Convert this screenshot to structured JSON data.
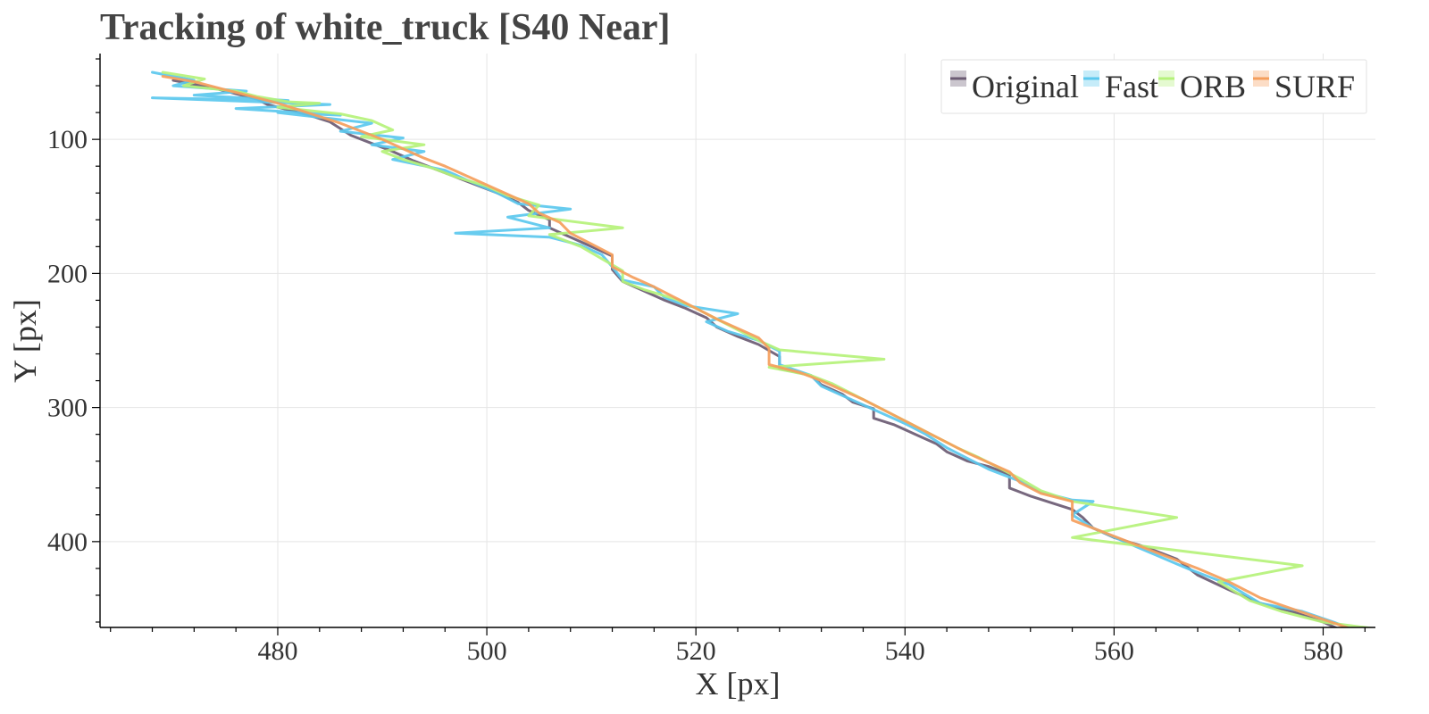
{
  "chart_data": {
    "type": "line",
    "title": "Tracking of white_truck [S40 Near]",
    "xlabel": "X [px]",
    "ylabel": "Y [px]",
    "xlim": [
      463,
      585
    ],
    "ylim": [
      464,
      36
    ],
    "y_inverted": true,
    "grid": true,
    "legend_position": "top-right",
    "x_ticks": [
      480,
      500,
      520,
      540,
      560,
      580
    ],
    "y_ticks": [
      100,
      200,
      300,
      400
    ],
    "series": [
      {
        "name": "Original",
        "color": "#6b5b73",
        "points": [
          [
            470,
            56
          ],
          [
            472,
            59
          ],
          [
            474,
            62
          ],
          [
            476,
            66
          ],
          [
            478,
            70
          ],
          [
            479,
            74
          ],
          [
            481,
            78
          ],
          [
            483,
            82
          ],
          [
            485,
            87
          ],
          [
            486,
            92
          ],
          [
            487,
            97
          ],
          [
            489,
            103
          ],
          [
            491,
            109
          ],
          [
            493,
            116
          ],
          [
            495,
            122
          ],
          [
            497,
            128
          ],
          [
            499,
            134
          ],
          [
            501,
            140
          ],
          [
            503,
            147
          ],
          [
            504,
            153
          ],
          [
            506,
            160
          ],
          [
            506,
            166
          ],
          [
            508,
            173
          ],
          [
            510,
            180
          ],
          [
            512,
            187
          ],
          [
            512,
            197
          ],
          [
            513,
            206
          ],
          [
            515,
            213
          ],
          [
            517,
            220
          ],
          [
            519,
            226
          ],
          [
            521,
            233
          ],
          [
            522,
            240
          ],
          [
            524,
            247
          ],
          [
            526,
            253
          ],
          [
            528,
            262
          ],
          [
            528,
            271
          ],
          [
            531,
            276
          ],
          [
            532,
            283
          ],
          [
            534,
            290
          ],
          [
            535,
            296
          ],
          [
            537,
            301
          ],
          [
            537,
            308
          ],
          [
            539,
            313
          ],
          [
            541,
            320
          ],
          [
            543,
            327
          ],
          [
            544,
            333
          ],
          [
            546,
            340
          ],
          [
            548,
            344
          ],
          [
            550,
            350
          ],
          [
            550,
            360
          ],
          [
            552,
            366
          ],
          [
            554,
            371
          ],
          [
            556,
            376
          ],
          [
            557,
            382
          ],
          [
            558,
            390
          ],
          [
            560,
            397
          ],
          [
            563,
            404
          ],
          [
            566,
            413
          ],
          [
            568,
            425
          ],
          [
            571,
            436
          ],
          [
            574,
            446
          ],
          [
            577,
            452
          ],
          [
            580,
            460
          ],
          [
            582,
            467
          ]
        ]
      },
      {
        "name": "Fast",
        "color": "#5bc8ee",
        "points": [
          [
            468,
            50
          ],
          [
            472,
            56
          ],
          [
            470,
            60
          ],
          [
            477,
            64
          ],
          [
            472,
            67
          ],
          [
            481,
            71
          ],
          [
            468,
            69
          ],
          [
            485,
            74
          ],
          [
            476,
            77
          ],
          [
            486,
            82
          ],
          [
            480,
            80
          ],
          [
            489,
            88
          ],
          [
            486,
            94
          ],
          [
            492,
            99
          ],
          [
            489,
            104
          ],
          [
            494,
            109
          ],
          [
            491,
            115
          ],
          [
            496,
            123
          ],
          [
            498,
            130
          ],
          [
            501,
            140
          ],
          [
            503,
            148
          ],
          [
            508,
            152
          ],
          [
            502,
            158
          ],
          [
            506,
            166
          ],
          [
            497,
            170
          ],
          [
            506,
            173
          ],
          [
            509,
            179
          ],
          [
            511,
            186
          ],
          [
            512,
            195
          ],
          [
            513,
            205
          ],
          [
            516,
            210
          ],
          [
            517,
            218
          ],
          [
            519,
            224
          ],
          [
            524,
            230
          ],
          [
            521,
            236
          ],
          [
            523,
            243
          ],
          [
            526,
            250
          ],
          [
            528,
            258
          ],
          [
            528,
            268
          ],
          [
            531,
            276
          ],
          [
            532,
            284
          ],
          [
            534,
            291
          ],
          [
            536,
            298
          ],
          [
            538,
            305
          ],
          [
            540,
            312
          ],
          [
            542,
            320
          ],
          [
            544,
            330
          ],
          [
            546,
            338
          ],
          [
            548,
            346
          ],
          [
            551,
            355
          ],
          [
            553,
            363
          ],
          [
            556,
            369
          ],
          [
            558,
            370
          ],
          [
            556,
            380
          ],
          [
            558,
            390
          ],
          [
            561,
            400
          ],
          [
            564,
            410
          ],
          [
            567,
            420
          ],
          [
            571,
            432
          ],
          [
            574,
            446
          ],
          [
            578,
            452
          ],
          [
            581,
            460
          ],
          [
            583,
            466
          ]
        ]
      },
      {
        "name": "ORB",
        "color": "#b5f27a",
        "points": [
          [
            469,
            50
          ],
          [
            473,
            55
          ],
          [
            471,
            60
          ],
          [
            476,
            64
          ],
          [
            478,
            68
          ],
          [
            481,
            72
          ],
          [
            484,
            73
          ],
          [
            480,
            76
          ],
          [
            486,
            81
          ],
          [
            489,
            86
          ],
          [
            491,
            93
          ],
          [
            488,
            98
          ],
          [
            494,
            104
          ],
          [
            490,
            109
          ],
          [
            492,
            115
          ],
          [
            495,
            122
          ],
          [
            497,
            128
          ],
          [
            500,
            135
          ],
          [
            502,
            142
          ],
          [
            505,
            149
          ],
          [
            504,
            157
          ],
          [
            513,
            166
          ],
          [
            506,
            171
          ],
          [
            509,
            180
          ],
          [
            511,
            189
          ],
          [
            513,
            198
          ],
          [
            513,
            206
          ],
          [
            515,
            212
          ],
          [
            518,
            219
          ],
          [
            520,
            226
          ],
          [
            522,
            234
          ],
          [
            524,
            242
          ],
          [
            526,
            250
          ],
          [
            528,
            257
          ],
          [
            538,
            264
          ],
          [
            527,
            270
          ],
          [
            531,
            276
          ],
          [
            533,
            282
          ],
          [
            535,
            290
          ],
          [
            537,
            298
          ],
          [
            539,
            306
          ],
          [
            541,
            314
          ],
          [
            543,
            322
          ],
          [
            545,
            330
          ],
          [
            547,
            337
          ],
          [
            549,
            345
          ],
          [
            551,
            353
          ],
          [
            553,
            362
          ],
          [
            556,
            370
          ],
          [
            566,
            382
          ],
          [
            556,
            397
          ],
          [
            578,
            418
          ],
          [
            570,
            430
          ],
          [
            573,
            444
          ],
          [
            576,
            452
          ],
          [
            580,
            460
          ],
          [
            585,
            465
          ]
        ]
      },
      {
        "name": "SURF",
        "color": "#f59e5c",
        "points": [
          [
            469,
            53
          ],
          [
            472,
            57
          ],
          [
            474,
            61
          ],
          [
            476,
            65
          ],
          [
            478,
            69
          ],
          [
            480,
            73
          ],
          [
            482,
            78
          ],
          [
            484,
            83
          ],
          [
            486,
            88
          ],
          [
            488,
            94
          ],
          [
            490,
            100
          ],
          [
            492,
            107
          ],
          [
            494,
            114
          ],
          [
            496,
            120
          ],
          [
            498,
            127
          ],
          [
            500,
            134
          ],
          [
            502,
            141
          ],
          [
            504,
            148
          ],
          [
            505,
            155
          ],
          [
            507,
            162
          ],
          [
            508,
            170
          ],
          [
            510,
            178
          ],
          [
            512,
            186
          ],
          [
            512,
            195
          ],
          [
            514,
            203
          ],
          [
            516,
            210
          ],
          [
            518,
            218
          ],
          [
            520,
            226
          ],
          [
            522,
            234
          ],
          [
            524,
            241
          ],
          [
            526,
            248
          ],
          [
            527,
            256
          ],
          [
            527,
            268
          ],
          [
            530,
            274
          ],
          [
            532,
            280
          ],
          [
            534,
            287
          ],
          [
            536,
            294
          ],
          [
            538,
            302
          ],
          [
            540,
            310
          ],
          [
            542,
            318
          ],
          [
            544,
            326
          ],
          [
            546,
            334
          ],
          [
            548,
            341
          ],
          [
            550,
            348
          ],
          [
            551,
            356
          ],
          [
            553,
            364
          ],
          [
            556,
            370
          ],
          [
            556,
            384
          ],
          [
            559,
            393
          ],
          [
            562,
            402
          ],
          [
            565,
            411
          ],
          [
            568,
            420
          ],
          [
            571,
            430
          ],
          [
            574,
            442
          ],
          [
            577,
            450
          ],
          [
            580,
            458
          ],
          [
            583,
            466
          ]
        ]
      }
    ]
  }
}
